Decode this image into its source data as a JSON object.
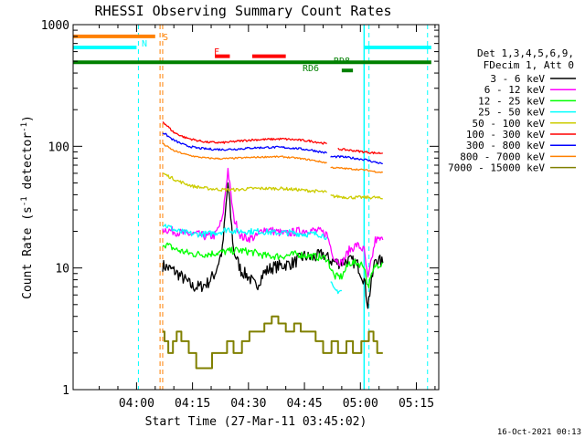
{
  "chart_data": {
    "type": "line",
    "title": "RHESSI Observing Summary Count Rates",
    "xlabel": "Start Time (27-Mar-11 03:45:02)",
    "ylabel_main": "Count Rate (s",
    "ylabel_sup": "-1",
    "ylabel_tail": " detector",
    "ylabel_sup2": "-1",
    "ylabel_end": ")",
    "footer": "16-Oct-2021 00:13",
    "x_axis": {
      "unit": "minutes since 03:45:02",
      "range": [
        -2,
        96
      ],
      "ticks": [
        {
          "label": "04:00",
          "value": 15
        },
        {
          "label": "04:15",
          "value": 30
        },
        {
          "label": "04:30",
          "value": 45
        },
        {
          "label": "04:45",
          "value": 60
        },
        {
          "label": "05:00",
          "value": 75
        },
        {
          "label": "05:15",
          "value": 90
        }
      ]
    },
    "y_axis": {
      "scale": "log",
      "range": [
        1,
        1000
      ],
      "ticks": [
        {
          "label": "1",
          "value": 1
        },
        {
          "label": "10",
          "value": 10
        },
        {
          "label": "100",
          "value": 100
        },
        {
          "label": "1000",
          "value": 1000
        }
      ]
    },
    "legend": {
      "placement": "right",
      "header": [
        "Det 1,3,4,5,6,9,",
        "FDecim 1, Att 0"
      ],
      "entries": [
        {
          "label": "3 - 6 keV",
          "color": "#000000"
        },
        {
          "label": "6 - 12 keV",
          "color": "#ff00ff"
        },
        {
          "label": "12 - 25 keV",
          "color": "#00ff00"
        },
        {
          "label": "25 - 50 keV",
          "color": "#00ffff"
        },
        {
          "label": "50 - 100 keV",
          "color": "#cccc00"
        },
        {
          "label": "100 - 300 keV",
          "color": "#ff0000"
        },
        {
          "label": "300 - 800 keV",
          "color": "#0000ff"
        },
        {
          "label": "800 - 7000 keV",
          "color": "#ff8000"
        },
        {
          "label": "7000 - 15000 keV",
          "color": "#808000"
        }
      ]
    },
    "flags": [
      {
        "label": "S",
        "color": "#ff8000",
        "level": 800,
        "segments": [
          [
            -2,
            20
          ]
        ]
      },
      {
        "label": "N",
        "color": "#00ffff",
        "level": 650,
        "segments": [
          [
            -2,
            15
          ],
          [
            76,
            94
          ]
        ]
      },
      {
        "label": "F",
        "color": "#ff0000",
        "level": 550,
        "segments": [
          [
            36,
            40
          ],
          [
            46,
            55
          ]
        ]
      },
      {
        "label": "RD8",
        "color": "#008000",
        "level": 490,
        "segments": [
          [
            -2,
            94
          ]
        ]
      },
      {
        "label": "RD6",
        "color": "#008000",
        "level": 420,
        "segments": [
          [
            70,
            73
          ]
        ]
      }
    ],
    "markers": [
      {
        "color": "#00ffff",
        "style": "dashed",
        "x": 15.5
      },
      {
        "color": "#ff8000",
        "style": "dashed",
        "x": 21.3
      },
      {
        "color": "#ff8000",
        "style": "dashed",
        "x": 22
      },
      {
        "color": "#00ffff",
        "style": "solid",
        "x": 76
      },
      {
        "color": "#00ffff",
        "style": "dashed",
        "x": 77.3
      },
      {
        "color": "#00ffff",
        "style": "dashed",
        "x": 93
      }
    ],
    "series": [
      {
        "name": "3 - 6 keV",
        "color": "#000000",
        "noise": 0.12,
        "segments": [
          {
            "x": [
              22,
              25,
              27,
              30,
              32,
              34,
              36,
              38,
              39.5,
              41,
              43,
              45,
              47,
              49,
              51,
              54,
              57,
              60,
              62,
              65,
              67,
              69,
              72,
              74,
              76,
              77,
              79,
              81
            ],
            "y": [
              10.5,
              9.5,
              8.5,
              7,
              7,
              7.5,
              9,
              14,
              50,
              14,
              9.5,
              8.5,
              7,
              9,
              10,
              10.5,
              11,
              12.5,
              12,
              13,
              11.5,
              11,
              11.5,
              11,
              8,
              5,
              12,
              11
            ]
          }
        ]
      },
      {
        "name": "6 - 12 keV",
        "color": "#ff00ff",
        "noise": 0.08,
        "segments": [
          {
            "x": [
              22,
              25,
              28,
              31,
              34,
              36,
              38,
              39.5,
              41,
              43,
              45,
              47,
              49,
              52,
              55,
              58,
              61,
              64,
              66,
              68,
              70,
              72,
              74,
              76,
              77,
              79,
              81
            ],
            "y": [
              21,
              20,
              19,
              19,
              18,
              18.5,
              25,
              65,
              26,
              18,
              17.5,
              18,
              21,
              20,
              19,
              20,
              20.5,
              20,
              19,
              12,
              11,
              14,
              15.5,
              14,
              8,
              17,
              17
            ]
          }
        ]
      },
      {
        "name": "12 - 25 keV",
        "color": "#00ff00",
        "noise": 0.07,
        "segments": [
          {
            "x": [
              22,
              26,
              30,
              34,
              38,
              42,
              46,
              50,
              54,
              58,
              62,
              66,
              68,
              70,
              72,
              74,
              76,
              77,
              79,
              81
            ],
            "y": [
              16,
              14,
              13,
              13,
              13.5,
              14,
              13.5,
              12.5,
              12.5,
              13,
              12.5,
              12,
              8.5,
              8.5,
              11,
              11,
              10.5,
              7,
              10.5,
              11
            ]
          }
        ]
      },
      {
        "name": "25 - 50 keV",
        "color": "#00ffff",
        "noise": 0.06,
        "segments": [
          {
            "x": [
              22,
              26,
              30,
              34,
              38,
              39.5,
              41,
              44,
              48,
              52,
              56,
              60,
              64,
              66
            ],
            "y": [
              23,
              20,
              19,
              19,
              20,
              21,
              20,
              20,
              20,
              19.5,
              19.5,
              19,
              19,
              18
            ]
          },
          {
            "x": [
              67,
              68,
              69,
              70
            ],
            "y": [
              7.5,
              6.5,
              6.5,
              6.5
            ]
          }
        ]
      },
      {
        "name": "50 - 100 keV",
        "color": "#cccc00",
        "noise": 0.03,
        "segments": [
          {
            "x": [
              22,
              26,
              30,
              34,
              38,
              42,
              46,
              50,
              54,
              58,
              62,
              66
            ],
            "y": [
              60,
              52,
              47,
              45,
              44,
              44,
              45,
              45,
              45,
              44,
              43,
              42
            ]
          },
          {
            "x": [
              67,
              72,
              76,
              79,
              81
            ],
            "y": [
              39,
              38,
              38,
              38,
              37
            ]
          }
        ]
      },
      {
        "name": "100 - 300 keV",
        "color": "#ff0000",
        "noise": 0.02,
        "segments": [
          {
            "x": [
              22,
              25,
              28,
              31,
              34,
              38,
              42,
              46,
              50,
              54,
              58,
              62,
              66
            ],
            "y": [
              160,
              130,
              118,
              112,
              108,
              107,
              110,
              113,
              114,
              115,
              113,
              110,
              105
            ]
          },
          {
            "x": [
              69,
              72,
              76,
              79,
              81
            ],
            "y": [
              95,
              93,
              90,
              88,
              88
            ]
          }
        ]
      },
      {
        "name": "300 - 800 keV",
        "color": "#0000ff",
        "noise": 0.02,
        "segments": [
          {
            "x": [
              22,
              25,
              28,
              31,
              34,
              38,
              42,
              46,
              50,
              54,
              58,
              62,
              66
            ],
            "y": [
              130,
              112,
              102,
              97,
              95,
              94,
              95,
              97,
              98,
              98,
              96,
              93,
              88
            ]
          },
          {
            "x": [
              67,
              70,
              73,
              76,
              79,
              81
            ],
            "y": [
              82,
              82,
              80,
              78,
              74,
              72
            ]
          }
        ]
      },
      {
        "name": "800 - 7000 keV",
        "color": "#ff8000",
        "noise": 0.015,
        "segments": [
          {
            "x": [
              22,
              25,
              28,
              31,
              34,
              38,
              42,
              46,
              50,
              54,
              58,
              62,
              66
            ],
            "y": [
              105,
              92,
              86,
              82,
              80,
              79,
              80,
              81,
              82,
              82,
              80,
              77,
              73
            ]
          },
          {
            "x": [
              67,
              70,
              73,
              76,
              79,
              81
            ],
            "y": [
              67,
              66,
              65,
              64,
              62,
              61
            ]
          }
        ]
      },
      {
        "name": "7000 - 15000 keV",
        "color": "#808000",
        "noise": 0,
        "segments": [
          {
            "x": [
              22,
              24,
              26,
              28,
              30,
              32,
              34,
              36,
              38,
              40,
              42,
              44,
              46,
              48,
              50,
              52,
              54,
              56,
              58,
              60,
              62,
              64,
              66,
              68,
              70,
              72,
              74,
              76,
              78,
              80,
              81
            ],
            "y": [
              3,
              2,
              3,
              2.5,
              2,
              1.5,
              1.5,
              2,
              2,
              2.5,
              2,
              2.5,
              3,
              3,
              3.5,
              4,
              3.5,
              3,
              3.5,
              3,
              3,
              2.5,
              2,
              2.5,
              2,
              2.5,
              2,
              2.5,
              3,
              2,
              2
            ]
          }
        ]
      }
    ]
  }
}
